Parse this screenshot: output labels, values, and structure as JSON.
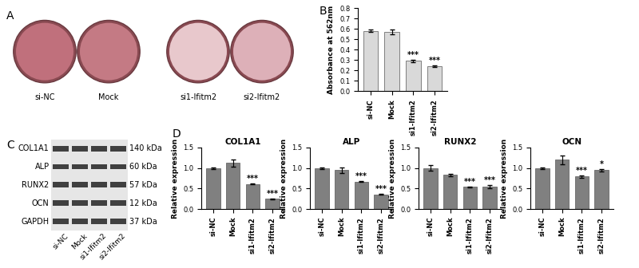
{
  "figure": {
    "panel_labels": [
      "A",
      "B",
      "C",
      "D"
    ],
    "dishes": [
      "si-NC",
      "Mock",
      "si1-Ifitm2",
      "si2-Ifitm2"
    ],
    "blot": {
      "rows": [
        {
          "protein": "COL1A1",
          "size": "140 kDa"
        },
        {
          "protein": "ALP",
          "size": "60 kDa"
        },
        {
          "protein": "RUNX2",
          "size": "57 kDa"
        },
        {
          "protein": "OCN",
          "size": "12 kDa"
        },
        {
          "protein": "GAPDH",
          "size": "37 kDa"
        }
      ],
      "lanes": [
        "si-NC",
        "Mock",
        "si1-Ifitm2",
        "si2-Ifitm2"
      ]
    }
  },
  "chart_data": [
    {
      "type": "bar",
      "categories": [
        "si-NC",
        "Mock",
        "si1-Ifitm2",
        "si2-Ifitm2"
      ],
      "values": [
        0.58,
        0.57,
        0.29,
        0.24
      ],
      "errors": [
        0.01,
        0.02,
        0.01,
        0.01
      ],
      "significance": [
        null,
        null,
        "***",
        "***"
      ],
      "y_label": "Absorbance at 562nm",
      "color": "#d9d9d9",
      "ylim": [
        0,
        0.8
      ],
      "yticks": [
        0.0,
        0.1,
        0.2,
        0.3,
        0.4,
        0.5,
        0.6,
        0.7,
        0.8
      ]
    },
    {
      "type": "bar",
      "title": "COL1A1",
      "categories": [
        "si-NC",
        "Mock",
        "si1-Ifitm2",
        "si2-Ifitm2"
      ],
      "values": [
        1.0,
        1.12,
        0.61,
        0.25
      ],
      "errors": [
        0.02,
        0.09,
        0.01,
        0.01
      ],
      "significance": [
        null,
        null,
        "***",
        "***"
      ],
      "y_label": "Relative expression",
      "color": "#808080",
      "ylim": [
        0,
        1.5
      ],
      "yticks": [
        0.0,
        0.5,
        1.0,
        1.5
      ]
    },
    {
      "type": "bar",
      "title": "ALP",
      "categories": [
        "si-NC",
        "Mock",
        "si1-Ifitm2",
        "si2-Ifitm2"
      ],
      "values": [
        1.0,
        0.95,
        0.67,
        0.36
      ],
      "errors": [
        0.02,
        0.07,
        0.01,
        0.01
      ],
      "significance": [
        null,
        null,
        "***",
        "***"
      ],
      "y_label": "Relative expression",
      "color": "#808080",
      "ylim": [
        0,
        1.5
      ],
      "yticks": [
        0.0,
        0.5,
        1.0,
        1.5
      ]
    },
    {
      "type": "bar",
      "title": "RUNX2",
      "categories": [
        "si-NC",
        "Mock",
        "si1-Ifitm2",
        "si2-Ifitm2"
      ],
      "values": [
        1.0,
        0.83,
        0.54,
        0.55
      ],
      "errors": [
        0.07,
        0.03,
        0.01,
        0.04
      ],
      "significance": [
        null,
        null,
        "***",
        "***"
      ],
      "y_label": "Relative expression",
      "color": "#808080",
      "ylim": [
        0,
        1.5
      ],
      "yticks": [
        0.0,
        0.5,
        1.0,
        1.5
      ]
    },
    {
      "type": "bar",
      "title": "OCN",
      "categories": [
        "si-NC",
        "Mock",
        "si1-Ifitm2",
        "si2-Ifitm2"
      ],
      "values": [
        1.0,
        1.2,
        0.79,
        0.95
      ],
      "errors": [
        0.02,
        0.11,
        0.03,
        0.03
      ],
      "significance": [
        null,
        null,
        "***",
        "*"
      ],
      "y_label": "Relative expression",
      "color": "#808080",
      "ylim": [
        0,
        1.5
      ],
      "yticks": [
        0.0,
        0.5,
        1.0,
        1.5
      ]
    }
  ]
}
